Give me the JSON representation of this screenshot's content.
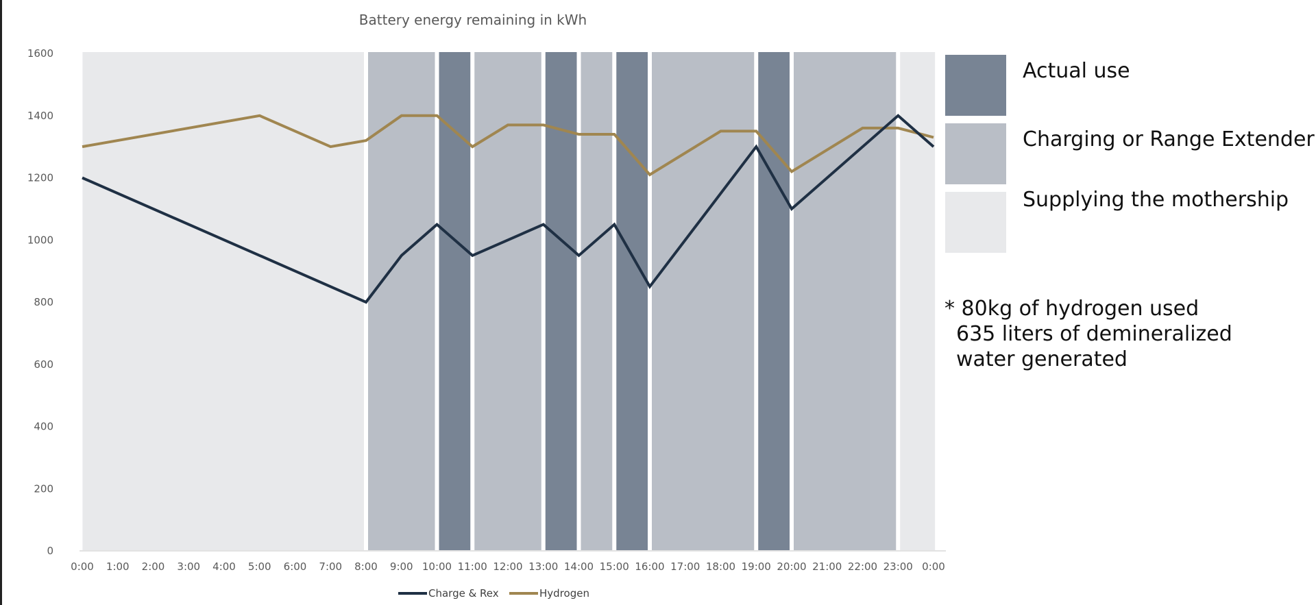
{
  "chart_data": {
    "type": "line",
    "title": "Battery energy remaining in kWh",
    "x": [
      "0:00",
      "1:00",
      "2:00",
      "3:00",
      "4:00",
      "5:00",
      "6:00",
      "7:00",
      "8:00",
      "9:00",
      "10:00",
      "11:00",
      "12:00",
      "13:00",
      "14:00",
      "15:00",
      "16:00",
      "17:00",
      "18:00",
      "19:00",
      "20:00",
      "21:00",
      "22:00",
      "23:00",
      "0:00"
    ],
    "ylim": [
      0,
      1600
    ],
    "yticks": [
      "0",
      "200",
      "400",
      "600",
      "800",
      "1000",
      "1200",
      "1400",
      "1600"
    ],
    "series": [
      {
        "name": "Charge & Rex",
        "color": "#1f3044",
        "points": [
          [
            0,
            1200
          ],
          [
            5,
            950
          ],
          [
            8,
            800
          ],
          [
            9,
            950
          ],
          [
            10,
            1050
          ],
          [
            11,
            950
          ],
          [
            12,
            1000
          ],
          [
            13,
            1050
          ],
          [
            14,
            950
          ],
          [
            15,
            1050
          ],
          [
            16,
            850
          ],
          [
            19,
            1300
          ],
          [
            20,
            1100
          ],
          [
            23,
            1400
          ],
          [
            24,
            1300
          ]
        ]
      },
      {
        "name": "Hydrogen",
        "color": "#a08650",
        "points": [
          [
            0,
            1300
          ],
          [
            5,
            1400
          ],
          [
            7,
            1300
          ],
          [
            8,
            1320
          ],
          [
            9,
            1400
          ],
          [
            10,
            1400
          ],
          [
            11,
            1300
          ],
          [
            12,
            1370
          ],
          [
            13,
            1370
          ],
          [
            14,
            1340
          ],
          [
            15,
            1340
          ],
          [
            16,
            1210
          ],
          [
            18,
            1350
          ],
          [
            19,
            1350
          ],
          [
            20,
            1220
          ],
          [
            22,
            1360
          ],
          [
            23,
            1360
          ],
          [
            24,
            1330
          ]
        ]
      }
    ],
    "bands": [
      {
        "from": -0.05,
        "to": 8,
        "kind": "supply"
      },
      {
        "from": 8,
        "to": 10,
        "kind": "charge"
      },
      {
        "from": 10,
        "to": 11,
        "kind": "actual"
      },
      {
        "from": 11,
        "to": 13,
        "kind": "charge"
      },
      {
        "from": 13,
        "to": 14,
        "kind": "actual"
      },
      {
        "from": 14,
        "to": 15,
        "kind": "charge"
      },
      {
        "from": 15,
        "to": 16,
        "kind": "actual"
      },
      {
        "from": 16,
        "to": 19,
        "kind": "charge"
      },
      {
        "from": 19,
        "to": 20,
        "kind": "actual"
      },
      {
        "from": 20,
        "to": 23,
        "kind": "charge"
      },
      {
        "from": 23,
        "to": 24.1,
        "kind": "supply"
      }
    ],
    "band_colors": {
      "actual": "#788494",
      "charge": "#b9bec6",
      "supply": "#e8e9eb"
    },
    "grid": false,
    "legend_position": "bottom"
  },
  "key": [
    {
      "label": "Actual use",
      "color": "#788494"
    },
    {
      "label": "Charging or Range Extender",
      "color": "#b9bec6"
    },
    {
      "label": "Supplying the mothership",
      "color": "#e8e9eb"
    }
  ],
  "note": {
    "line1": "* 80kg of hydrogen used",
    "line2": "635 liters of demineralized",
    "line3": "water generated"
  }
}
